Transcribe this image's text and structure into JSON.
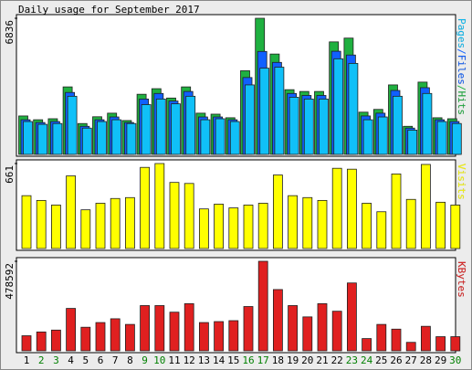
{
  "chart_data": [
    {
      "type": "bar",
      "title": "Daily usage for September 2017",
      "axis_label_separator": "/",
      "ylim": [
        0,
        6836
      ],
      "yticks": [
        6836
      ],
      "series": [
        {
          "name": "Hits",
          "color": "#1fb040",
          "values": [
            1930,
            1740,
            1790,
            3390,
            1550,
            1890,
            2070,
            1700,
            3020,
            3300,
            2830,
            3390,
            2070,
            2020,
            1840,
            4200,
            6836,
            5040,
            3250,
            3160,
            3160,
            5650,
            5840,
            2120,
            2260,
            3490,
            1410,
            3630,
            1840,
            1790
          ]
        },
        {
          "name": "Files",
          "color": "#1060ff",
          "values": [
            1740,
            1600,
            1650,
            3110,
            1410,
            1740,
            1880,
            1600,
            2780,
            3060,
            2680,
            3160,
            1880,
            1880,
            1740,
            3860,
            5170,
            4620,
            3060,
            2960,
            2960,
            5180,
            4990,
            1930,
            2070,
            3210,
            1320,
            3350,
            1740,
            1650
          ]
        },
        {
          "name": "Pages",
          "color": "#10c0f8",
          "values": [
            1650,
            1510,
            1550,
            2920,
            1320,
            1650,
            1740,
            1550,
            2500,
            2780,
            2540,
            2920,
            1740,
            1790,
            1650,
            3490,
            4330,
            4380,
            2870,
            2780,
            2780,
            4800,
            4570,
            1740,
            1880,
            2920,
            1220,
            3060,
            1650,
            1550
          ]
        }
      ]
    },
    {
      "type": "bar",
      "ylim": [
        0,
        661
      ],
      "yticks": [
        661
      ],
      "series": [
        {
          "name": "Visits",
          "color": "#ffff00",
          "values": [
            411,
            374,
            338,
            565,
            301,
            352,
            389,
            396,
            631,
            661,
            514,
            506,
            308,
            345,
            316,
            338,
            352,
            572,
            411,
            396,
            374,
            624,
            617,
            352,
            286,
            580,
            382,
            654,
            360,
            338
          ]
        }
      ]
    },
    {
      "type": "bar",
      "ylim": [
        0,
        478592
      ],
      "yticks": [
        478592
      ],
      "series": [
        {
          "name": "KBytes",
          "color": "#e02020",
          "values": [
            80600,
            100800,
            110800,
            226700,
            126000,
            151100,
            171300,
            141100,
            241800,
            241800,
            206600,
            251900,
            151100,
            156200,
            161200,
            236800,
            478592,
            327500,
            241800,
            181400,
            251900,
            211600,
            362700,
            65500,
            141100,
            115900,
            45300,
            131000,
            75600,
            75600
          ]
        }
      ],
      "categories": [
        "1",
        "2",
        "3",
        "4",
        "5",
        "6",
        "7",
        "8",
        "9",
        "10",
        "11",
        "12",
        "13",
        "14",
        "15",
        "16",
        "17",
        "18",
        "19",
        "20",
        "21",
        "22",
        "23",
        "24",
        "25",
        "26",
        "27",
        "28",
        "29",
        "30"
      ],
      "label_colors": [
        "#000000",
        "#008000",
        "#008000",
        "#000000",
        "#000000",
        "#000000",
        "#000000",
        "#000000",
        "#008000",
        "#008000",
        "#000000",
        "#000000",
        "#000000",
        "#000000",
        "#000000",
        "#008000",
        "#008000",
        "#000000",
        "#000000",
        "#000000",
        "#000000",
        "#000000",
        "#008000",
        "#008000",
        "#000000",
        "#000000",
        "#000000",
        "#000000",
        "#000000",
        "#008000"
      ]
    }
  ]
}
